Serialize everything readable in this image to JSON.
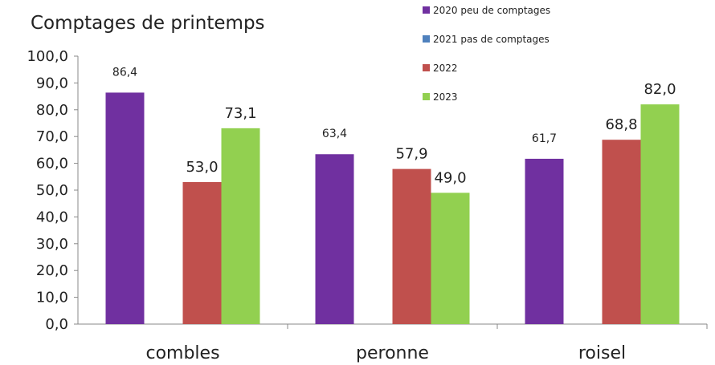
{
  "chart_data": {
    "type": "bar",
    "title": "Comptages de printemps",
    "categories": [
      "combles",
      "peronne",
      "roisel"
    ],
    "series": [
      {
        "name": "2020 peu de comptages",
        "color": "#7030a0",
        "values": [
          86.4,
          63.4,
          61.7
        ],
        "labels": [
          "86,4",
          "63,4",
          "61,7"
        ]
      },
      {
        "name": "2021 pas de comptages",
        "color": "#4f81bd",
        "values": [
          null,
          null,
          null
        ],
        "labels": [
          "",
          "",
          ""
        ]
      },
      {
        "name": "2022",
        "color": "#c0504d",
        "values": [
          53.0,
          57.9,
          68.8
        ],
        "labels": [
          "53,0",
          "57,9",
          "68,8"
        ]
      },
      {
        "name": "2023",
        "color": "#92d050",
        "values": [
          73.1,
          49.0,
          82.0
        ],
        "labels": [
          "73,1",
          "49,0",
          "82,0"
        ]
      }
    ],
    "ylim": [
      0,
      100
    ],
    "yticks": [
      0,
      10,
      20,
      30,
      40,
      50,
      60,
      70,
      80,
      90,
      100
    ],
    "ytick_labels": [
      "0,0",
      "10,0",
      "20,0",
      "30,0",
      "40,0",
      "50,0",
      "60,0",
      "70,0",
      "80,0",
      "90,0",
      "100,0"
    ],
    "grid": false,
    "legend": "top-right",
    "xlabel": "",
    "ylabel": ""
  }
}
